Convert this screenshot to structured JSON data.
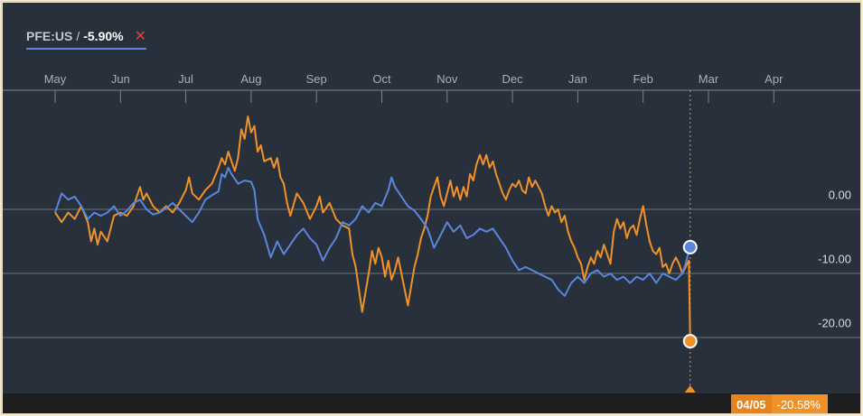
{
  "legend": {
    "ticker": "PFE:US",
    "separator": "/",
    "change": "-5.90%",
    "close_symbol": "✕"
  },
  "colors": {
    "background": "#28313b",
    "series_blue": "#5b86dd",
    "series_orange": "#f0922a",
    "grid": "#6c747e",
    "close": "#e0413f"
  },
  "crosshair": {
    "date": "04/05",
    "value": "-20.58%"
  },
  "chart_data": {
    "type": "line",
    "x_labels": [
      "May",
      "Jun",
      "Jul",
      "Aug",
      "Sep",
      "Oct",
      "Nov",
      "Dec",
      "Jan",
      "Feb",
      "Mar",
      "Apr"
    ],
    "y_ticks": [
      "0.00",
      "-10.00",
      "-20.00"
    ],
    "y_tick_values": [
      0,
      -10,
      -20
    ],
    "ylim": [
      -32,
      17
    ],
    "series": [
      {
        "name": "PFE:US",
        "color": "#5b86dd",
        "end_value": -5.9,
        "points": [
          [
            0.0,
            -0.5
          ],
          [
            0.1,
            2.5
          ],
          [
            0.2,
            1.5
          ],
          [
            0.3,
            2.0
          ],
          [
            0.4,
            0.5
          ],
          [
            0.5,
            -1.5
          ],
          [
            0.6,
            -0.5
          ],
          [
            0.7,
            -1.0
          ],
          [
            0.8,
            -0.5
          ],
          [
            0.9,
            0.5
          ],
          [
            1.0,
            -1.0
          ],
          [
            1.1,
            -0.2
          ],
          [
            1.2,
            1.0
          ],
          [
            1.3,
            1.5
          ],
          [
            1.4,
            0.0
          ],
          [
            1.5,
            -0.8
          ],
          [
            1.6,
            -0.5
          ],
          [
            1.7,
            0.2
          ],
          [
            1.8,
            1.0
          ],
          [
            1.9,
            0.0
          ],
          [
            2.0,
            -1.0
          ],
          [
            2.1,
            -2.0
          ],
          [
            2.2,
            -0.5
          ],
          [
            2.3,
            1.5
          ],
          [
            2.4,
            2.2
          ],
          [
            2.5,
            2.8
          ],
          [
            2.55,
            5.5
          ],
          [
            2.6,
            5.0
          ],
          [
            2.65,
            6.5
          ],
          [
            2.7,
            5.5
          ],
          [
            2.8,
            4.0
          ],
          [
            2.9,
            4.5
          ],
          [
            3.0,
            4.3
          ],
          [
            3.05,
            3.0
          ],
          [
            3.1,
            -1.5
          ],
          [
            3.2,
            -4.0
          ],
          [
            3.3,
            -7.5
          ],
          [
            3.4,
            -5.0
          ],
          [
            3.5,
            -7.0
          ],
          [
            3.6,
            -5.5
          ],
          [
            3.7,
            -4.0
          ],
          [
            3.8,
            -3.0
          ],
          [
            3.9,
            -4.5
          ],
          [
            4.0,
            -5.5
          ],
          [
            4.1,
            -8.0
          ],
          [
            4.2,
            -6.0
          ],
          [
            4.3,
            -4.5
          ],
          [
            4.4,
            -2.0
          ],
          [
            4.5,
            -2.5
          ],
          [
            4.6,
            -1.5
          ],
          [
            4.7,
            0.5
          ],
          [
            4.8,
            -0.5
          ],
          [
            4.9,
            1.0
          ],
          [
            5.0,
            0.5
          ],
          [
            5.1,
            3.0
          ],
          [
            5.15,
            5.0
          ],
          [
            5.2,
            3.5
          ],
          [
            5.3,
            2.0
          ],
          [
            5.4,
            0.5
          ],
          [
            5.5,
            -0.2
          ],
          [
            5.6,
            -1.5
          ],
          [
            5.7,
            -3.0
          ],
          [
            5.8,
            -6.0
          ],
          [
            5.9,
            -4.0
          ],
          [
            6.0,
            -2.0
          ],
          [
            6.1,
            -3.5
          ],
          [
            6.2,
            -2.5
          ],
          [
            6.3,
            -4.5
          ],
          [
            6.4,
            -4.0
          ],
          [
            6.5,
            -3.0
          ],
          [
            6.6,
            -3.5
          ],
          [
            6.7,
            -3.0
          ],
          [
            6.8,
            -4.5
          ],
          [
            6.9,
            -6.0
          ],
          [
            7.0,
            -8.0
          ],
          [
            7.1,
            -9.5
          ],
          [
            7.2,
            -9.0
          ],
          [
            7.3,
            -9.5
          ],
          [
            7.4,
            -10.0
          ],
          [
            7.5,
            -10.5
          ],
          [
            7.6,
            -11.0
          ],
          [
            7.7,
            -12.5
          ],
          [
            7.8,
            -13.5
          ],
          [
            7.9,
            -11.5
          ],
          [
            8.0,
            -10.5
          ],
          [
            8.1,
            -11.5
          ],
          [
            8.2,
            -10.0
          ],
          [
            8.3,
            -9.5
          ],
          [
            8.4,
            -10.5
          ],
          [
            8.5,
            -10.0
          ],
          [
            8.6,
            -11.0
          ],
          [
            8.7,
            -10.5
          ],
          [
            8.8,
            -11.5
          ],
          [
            8.9,
            -10.5
          ],
          [
            9.0,
            -11.0
          ],
          [
            9.1,
            -10.0
          ],
          [
            9.2,
            -11.5
          ],
          [
            9.3,
            -10.0
          ],
          [
            9.4,
            -10.5
          ],
          [
            9.5,
            -11.0
          ],
          [
            9.6,
            -10.0
          ],
          [
            9.65,
            -8.5
          ],
          [
            9.7,
            -6.5
          ],
          [
            9.72,
            -5.9
          ]
        ]
      },
      {
        "name": "",
        "color": "#f0922a",
        "end_value": -20.58,
        "points": [
          [
            0.0,
            -0.5
          ],
          [
            0.1,
            -2.0
          ],
          [
            0.2,
            -0.5
          ],
          [
            0.3,
            -1.5
          ],
          [
            0.4,
            0.5
          ],
          [
            0.5,
            -2.0
          ],
          [
            0.55,
            -5.0
          ],
          [
            0.6,
            -3.0
          ],
          [
            0.65,
            -5.5
          ],
          [
            0.7,
            -3.5
          ],
          [
            0.8,
            -5.0
          ],
          [
            0.9,
            -1.0
          ],
          [
            1.0,
            -0.5
          ],
          [
            1.1,
            -1.0
          ],
          [
            1.2,
            0.5
          ],
          [
            1.3,
            3.5
          ],
          [
            1.35,
            1.5
          ],
          [
            1.4,
            2.5
          ],
          [
            1.5,
            0.5
          ],
          [
            1.6,
            -0.5
          ],
          [
            1.7,
            0.5
          ],
          [
            1.8,
            -0.5
          ],
          [
            1.9,
            1.0
          ],
          [
            2.0,
            3.0
          ],
          [
            2.05,
            5.0
          ],
          [
            2.1,
            2.5
          ],
          [
            2.2,
            1.5
          ],
          [
            2.3,
            3.0
          ],
          [
            2.4,
            4.0
          ],
          [
            2.5,
            6.5
          ],
          [
            2.55,
            8.0
          ],
          [
            2.6,
            7.0
          ],
          [
            2.65,
            9.0
          ],
          [
            2.7,
            7.5
          ],
          [
            2.75,
            6.0
          ],
          [
            2.8,
            8.0
          ],
          [
            2.85,
            12.5
          ],
          [
            2.9,
            11.0
          ],
          [
            2.95,
            14.5
          ],
          [
            3.0,
            12.0
          ],
          [
            3.05,
            13.0
          ],
          [
            3.1,
            9.0
          ],
          [
            3.15,
            10.0
          ],
          [
            3.2,
            7.5
          ],
          [
            3.3,
            8.0
          ],
          [
            3.35,
            6.5
          ],
          [
            3.4,
            8.0
          ],
          [
            3.45,
            5.0
          ],
          [
            3.5,
            4.0
          ],
          [
            3.55,
            1.0
          ],
          [
            3.6,
            -1.0
          ],
          [
            3.7,
            2.5
          ],
          [
            3.8,
            1.0
          ],
          [
            3.9,
            -1.5
          ],
          [
            4.0,
            0.5
          ],
          [
            4.05,
            2.0
          ],
          [
            4.1,
            -0.5
          ],
          [
            4.2,
            1.0
          ],
          [
            4.3,
            -1.5
          ],
          [
            4.4,
            -2.5
          ],
          [
            4.5,
            -3.0
          ],
          [
            4.55,
            -7.0
          ],
          [
            4.6,
            -9.0
          ],
          [
            4.65,
            -12.5
          ],
          [
            4.7,
            -16.0
          ],
          [
            4.75,
            -13.0
          ],
          [
            4.8,
            -10.0
          ],
          [
            4.85,
            -6.5
          ],
          [
            4.9,
            -8.5
          ],
          [
            4.95,
            -6.0
          ],
          [
            5.0,
            -7.5
          ],
          [
            5.05,
            -10.5
          ],
          [
            5.1,
            -8.0
          ],
          [
            5.15,
            -11.0
          ],
          [
            5.2,
            -9.5
          ],
          [
            5.25,
            -7.5
          ],
          [
            5.3,
            -10.0
          ],
          [
            5.35,
            -12.5
          ],
          [
            5.4,
            -15.0
          ],
          [
            5.45,
            -12.0
          ],
          [
            5.5,
            -9.0
          ],
          [
            5.55,
            -7.0
          ],
          [
            5.6,
            -4.5
          ],
          [
            5.65,
            -3.0
          ],
          [
            5.7,
            -1.0
          ],
          [
            5.75,
            2.0
          ],
          [
            5.8,
            3.5
          ],
          [
            5.85,
            5.0
          ],
          [
            5.9,
            2.0
          ],
          [
            5.95,
            0.5
          ],
          [
            6.0,
            2.5
          ],
          [
            6.05,
            4.5
          ],
          [
            6.1,
            2.0
          ],
          [
            6.15,
            3.5
          ],
          [
            6.2,
            1.5
          ],
          [
            6.25,
            3.5
          ],
          [
            6.3,
            2.0
          ],
          [
            6.35,
            5.5
          ],
          [
            6.4,
            4.5
          ],
          [
            6.45,
            7.0
          ],
          [
            6.5,
            8.5
          ],
          [
            6.55,
            7.0
          ],
          [
            6.6,
            8.5
          ],
          [
            6.65,
            6.5
          ],
          [
            6.7,
            7.5
          ],
          [
            6.75,
            5.5
          ],
          [
            6.8,
            4.0
          ],
          [
            6.85,
            2.5
          ],
          [
            6.9,
            1.5
          ],
          [
            6.95,
            3.0
          ],
          [
            7.0,
            4.0
          ],
          [
            7.05,
            3.5
          ],
          [
            7.1,
            4.5
          ],
          [
            7.15,
            3.0
          ],
          [
            7.2,
            2.5
          ],
          [
            7.25,
            5.0
          ],
          [
            7.3,
            3.5
          ],
          [
            7.35,
            4.5
          ],
          [
            7.4,
            3.5
          ],
          [
            7.45,
            2.5
          ],
          [
            7.5,
            0.5
          ],
          [
            7.55,
            -1.0
          ],
          [
            7.6,
            0.5
          ],
          [
            7.65,
            -0.5
          ],
          [
            7.7,
            0.0
          ],
          [
            7.75,
            -2.0
          ],
          [
            7.8,
            -1.0
          ],
          [
            7.85,
            -3.5
          ],
          [
            7.9,
            -5.0
          ],
          [
            7.95,
            -6.0
          ],
          [
            8.0,
            -7.5
          ],
          [
            8.05,
            -8.5
          ],
          [
            8.1,
            -11.0
          ],
          [
            8.15,
            -9.0
          ],
          [
            8.2,
            -7.5
          ],
          [
            8.25,
            -8.5
          ],
          [
            8.3,
            -6.5
          ],
          [
            8.35,
            -7.5
          ],
          [
            8.4,
            -5.5
          ],
          [
            8.45,
            -7.0
          ],
          [
            8.5,
            -8.5
          ],
          [
            8.55,
            -3.5
          ],
          [
            8.6,
            -1.5
          ],
          [
            8.65,
            -3.0
          ],
          [
            8.7,
            -2.0
          ],
          [
            8.75,
            -4.5
          ],
          [
            8.8,
            -3.0
          ],
          [
            8.85,
            -2.5
          ],
          [
            8.9,
            -4.0
          ],
          [
            8.95,
            -1.5
          ],
          [
            9.0,
            0.5
          ],
          [
            9.05,
            -2.5
          ],
          [
            9.1,
            -5.0
          ],
          [
            9.15,
            -6.5
          ],
          [
            9.2,
            -7.0
          ],
          [
            9.25,
            -6.0
          ],
          [
            9.3,
            -9.0
          ],
          [
            9.35,
            -8.5
          ],
          [
            9.4,
            -10.0
          ],
          [
            9.45,
            -8.5
          ],
          [
            9.5,
            -7.5
          ],
          [
            9.55,
            -8.5
          ],
          [
            9.6,
            -10.0
          ],
          [
            9.65,
            -9.0
          ],
          [
            9.7,
            -8.0
          ],
          [
            9.72,
            -20.58
          ]
        ]
      }
    ]
  }
}
